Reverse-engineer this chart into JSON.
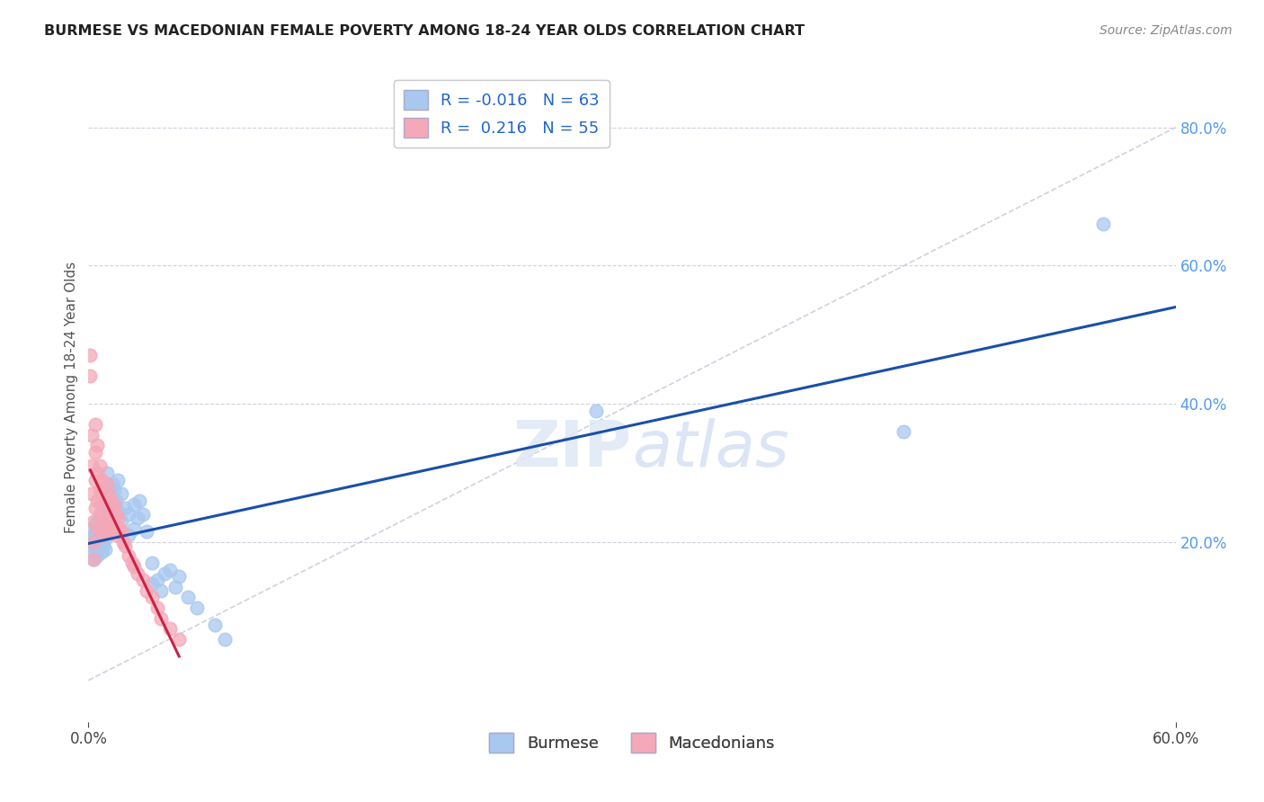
{
  "title": "BURMESE VS MACEDONIAN FEMALE POVERTY AMONG 18-24 YEAR OLDS CORRELATION CHART",
  "source": "Source: ZipAtlas.com",
  "ylabel": "Female Poverty Among 18-24 Year Olds",
  "xlim": [
    0.0,
    0.6
  ],
  "ylim": [
    -0.06,
    0.88
  ],
  "xticks": [
    0.0,
    0.6
  ],
  "xtick_labels": [
    "0.0%",
    "60.0%"
  ],
  "yticks_right": [
    0.2,
    0.4,
    0.6,
    0.8
  ],
  "burmese_R": -0.016,
  "burmese_N": 63,
  "macedonian_R": 0.216,
  "macedonian_N": 55,
  "burmese_color": "#a8c8f0",
  "macedonian_color": "#f4a8b8",
  "burmese_line_color": "#1a4faa",
  "macedonian_line_color": "#cc2244",
  "ref_line_color": "#ccccdd",
  "background_color": "#ffffff",
  "grid_color": "#d0d0e0",
  "burmese_x": [
    0.001,
    0.002,
    0.002,
    0.003,
    0.003,
    0.003,
    0.004,
    0.004,
    0.004,
    0.005,
    0.005,
    0.005,
    0.005,
    0.006,
    0.006,
    0.006,
    0.007,
    0.007,
    0.007,
    0.008,
    0.008,
    0.009,
    0.009,
    0.01,
    0.01,
    0.01,
    0.011,
    0.011,
    0.012,
    0.012,
    0.013,
    0.013,
    0.014,
    0.014,
    0.015,
    0.016,
    0.016,
    0.018,
    0.018,
    0.02,
    0.022,
    0.022,
    0.025,
    0.025,
    0.027,
    0.028,
    0.03,
    0.032,
    0.035,
    0.035,
    0.038,
    0.04,
    0.042,
    0.045,
    0.048,
    0.05,
    0.055,
    0.06,
    0.07,
    0.075,
    0.28,
    0.45,
    0.56
  ],
  "burmese_y": [
    0.22,
    0.2,
    0.185,
    0.21,
    0.195,
    0.175,
    0.225,
    0.205,
    0.185,
    0.23,
    0.215,
    0.2,
    0.18,
    0.22,
    0.205,
    0.19,
    0.215,
    0.2,
    0.185,
    0.21,
    0.195,
    0.205,
    0.19,
    0.3,
    0.26,
    0.22,
    0.28,
    0.24,
    0.27,
    0.23,
    0.285,
    0.255,
    0.275,
    0.235,
    0.26,
    0.29,
    0.245,
    0.27,
    0.23,
    0.25,
    0.24,
    0.21,
    0.255,
    0.22,
    0.235,
    0.26,
    0.24,
    0.215,
    0.17,
    0.14,
    0.145,
    0.13,
    0.155,
    0.16,
    0.135,
    0.15,
    0.12,
    0.105,
    0.08,
    0.06,
    0.39,
    0.36,
    0.66
  ],
  "macedonian_x": [
    0.001,
    0.001,
    0.002,
    0.002,
    0.002,
    0.003,
    0.003,
    0.003,
    0.004,
    0.004,
    0.004,
    0.004,
    0.005,
    0.005,
    0.005,
    0.005,
    0.006,
    0.006,
    0.006,
    0.007,
    0.007,
    0.007,
    0.008,
    0.008,
    0.008,
    0.009,
    0.009,
    0.01,
    0.01,
    0.01,
    0.011,
    0.011,
    0.012,
    0.012,
    0.013,
    0.014,
    0.014,
    0.015,
    0.015,
    0.016,
    0.017,
    0.018,
    0.019,
    0.02,
    0.022,
    0.024,
    0.025,
    0.027,
    0.03,
    0.032,
    0.035,
    0.038,
    0.04,
    0.045,
    0.05
  ],
  "macedonian_y": [
    0.47,
    0.44,
    0.355,
    0.31,
    0.27,
    0.23,
    0.2,
    0.175,
    0.37,
    0.33,
    0.29,
    0.25,
    0.34,
    0.3,
    0.26,
    0.22,
    0.31,
    0.275,
    0.24,
    0.29,
    0.255,
    0.22,
    0.27,
    0.24,
    0.21,
    0.255,
    0.225,
    0.285,
    0.25,
    0.215,
    0.27,
    0.235,
    0.26,
    0.225,
    0.245,
    0.255,
    0.22,
    0.24,
    0.21,
    0.235,
    0.22,
    0.215,
    0.2,
    0.195,
    0.18,
    0.17,
    0.165,
    0.155,
    0.145,
    0.13,
    0.12,
    0.105,
    0.09,
    0.075,
    0.06
  ]
}
